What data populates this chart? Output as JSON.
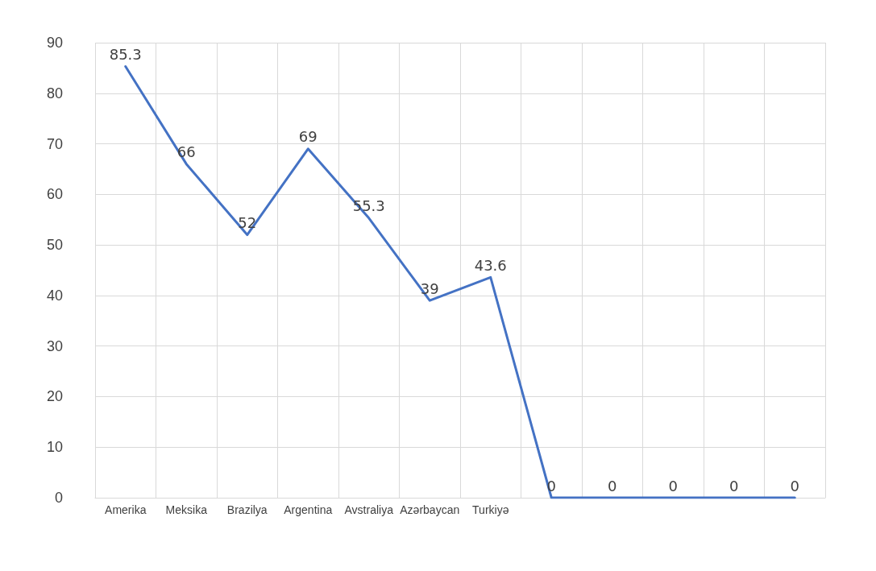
{
  "chart_data": {
    "type": "line",
    "categories": [
      "Amerika",
      "Meksika",
      "Brazilya",
      "Argentina",
      "Avstraliya",
      "Azərbaycan",
      "Turkiyə",
      null,
      null,
      null,
      null,
      null
    ],
    "series": [
      {
        "color": "#4472c4",
        "values": [
          85.3,
          66,
          52,
          69,
          55.3,
          39,
          43.6,
          0,
          0,
          0,
          0,
          0
        ]
      }
    ],
    "ylim": [
      0,
      90
    ],
    "yticks": [
      0,
      10,
      20,
      30,
      40,
      50,
      60,
      70,
      80,
      90
    ],
    "grid": true,
    "data_labels": true,
    "marker": "none",
    "line_style": "solid"
  }
}
